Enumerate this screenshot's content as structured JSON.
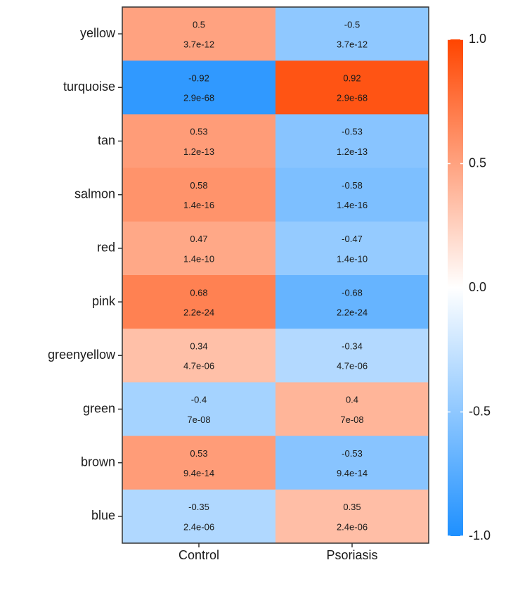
{
  "chart_data": {
    "type": "heatmap",
    "rows": [
      "yellow",
      "turquoise",
      "tan",
      "salmon",
      "red",
      "pink",
      "greenyellow",
      "green",
      "brown",
      "blue"
    ],
    "columns": [
      "Control",
      "Psoriasis"
    ],
    "correlations": [
      [
        0.5,
        -0.5
      ],
      [
        -0.92,
        0.92
      ],
      [
        0.53,
        -0.53
      ],
      [
        0.58,
        -0.58
      ],
      [
        0.47,
        -0.47
      ],
      [
        0.68,
        -0.68
      ],
      [
        0.34,
        -0.34
      ],
      [
        -0.4,
        0.4
      ],
      [
        0.53,
        -0.53
      ],
      [
        -0.35,
        0.35
      ]
    ],
    "correlation_labels": [
      [
        "0.5",
        "-0.5"
      ],
      [
        "-0.92",
        "0.92"
      ],
      [
        "0.53",
        "-0.53"
      ],
      [
        "0.58",
        "-0.58"
      ],
      [
        "0.47",
        "-0.47"
      ],
      [
        "0.68",
        "-0.68"
      ],
      [
        "0.34",
        "-0.34"
      ],
      [
        "-0.4",
        "0.4"
      ],
      [
        "0.53",
        "-0.53"
      ],
      [
        "-0.35",
        "0.35"
      ]
    ],
    "pvalue_labels": [
      [
        "3.7e-12",
        "3.7e-12"
      ],
      [
        "2.9e-68",
        "2.9e-68"
      ],
      [
        "1.2e-13",
        "1.2e-13"
      ],
      [
        "1.4e-16",
        "1.4e-16"
      ],
      [
        "1.4e-10",
        "1.4e-10"
      ],
      [
        "2.2e-24",
        "2.2e-24"
      ],
      [
        "4.7e-06",
        "4.7e-06"
      ],
      [
        "7e-08",
        "7e-08"
      ],
      [
        "9.4e-14",
        "9.4e-14"
      ],
      [
        "2.4e-06",
        "2.4e-06"
      ]
    ],
    "colorbar": {
      "range": [
        -1,
        1
      ],
      "ticks": [
        1.0,
        0.5,
        0.0,
        -0.5,
        -1.0
      ],
      "tick_labels": [
        "1.0",
        "0.5",
        "0.0",
        "-0.5",
        "-1.0"
      ],
      "low_color": "#1e90ff",
      "mid_color": "#ffffff",
      "high_color": "#ff4500"
    },
    "legend_position": "right"
  }
}
